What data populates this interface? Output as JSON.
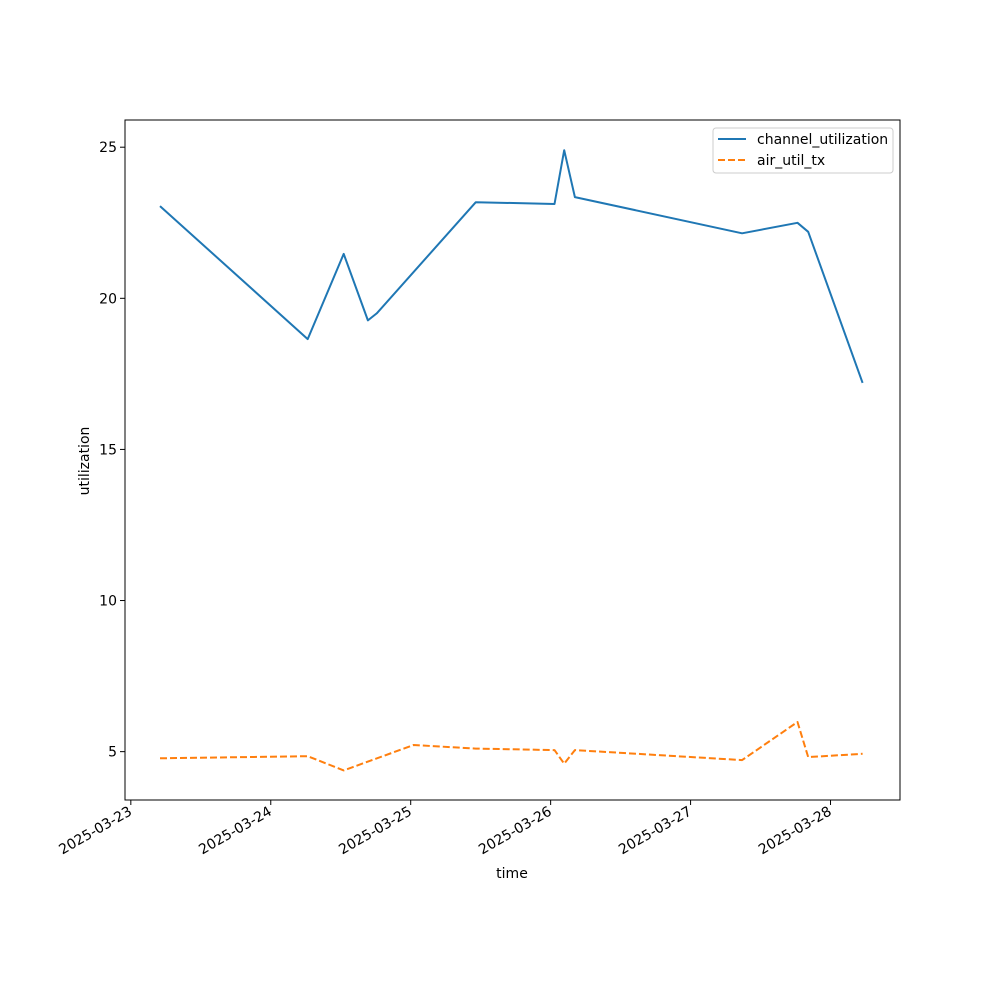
{
  "chart_data": {
    "type": "line",
    "xlabel": "time",
    "ylabel": "utilization",
    "x_ticks": [
      "2025-03-23",
      "2025-03-24",
      "2025-03-25",
      "2025-03-26",
      "2025-03-27",
      "2025-03-28"
    ],
    "y_ticks": [
      5,
      10,
      15,
      20,
      25
    ],
    "xlim": [
      "2025-03-22 23:00",
      "2025-03-28 11:55"
    ],
    "ylim": [
      3.4,
      25.9
    ],
    "grid": false,
    "legend_position": "top-right",
    "series": [
      {
        "name": "channel_utilization",
        "color": "#1f77b4",
        "style": "solid",
        "points": [
          {
            "x": "2025-03-23 05:00",
            "y": 23.05
          },
          {
            "x": "2025-03-24 06:20",
            "y": 18.65
          },
          {
            "x": "2025-03-24 12:30",
            "y": 21.47
          },
          {
            "x": "2025-03-24 16:40",
            "y": 19.27
          },
          {
            "x": "2025-03-24 18:10",
            "y": 19.5
          },
          {
            "x": "2025-03-25 11:10",
            "y": 23.18
          },
          {
            "x": "2025-03-26 00:40",
            "y": 23.12
          },
          {
            "x": "2025-03-26 02:20",
            "y": 24.9
          },
          {
            "x": "2025-03-26 04:10",
            "y": 23.35
          },
          {
            "x": "2025-03-27 08:50",
            "y": 22.15
          },
          {
            "x": "2025-03-27 18:20",
            "y": 22.5
          },
          {
            "x": "2025-03-27 20:10",
            "y": 22.2
          },
          {
            "x": "2025-03-28 05:30",
            "y": 17.2
          }
        ]
      },
      {
        "name": "air_util_tx",
        "color": "#ff7f0e",
        "style": "dashed",
        "points": [
          {
            "x": "2025-03-23 05:00",
            "y": 4.78
          },
          {
            "x": "2025-03-24 06:20",
            "y": 4.85
          },
          {
            "x": "2025-03-24 12:30",
            "y": 4.38
          },
          {
            "x": "2025-03-25 00:30",
            "y": 5.22
          },
          {
            "x": "2025-03-25 11:10",
            "y": 5.1
          },
          {
            "x": "2025-03-26 00:40",
            "y": 5.05
          },
          {
            "x": "2025-03-26 02:20",
            "y": 4.6
          },
          {
            "x": "2025-03-26 04:10",
            "y": 5.05
          },
          {
            "x": "2025-03-27 08:50",
            "y": 4.72
          },
          {
            "x": "2025-03-27 18:20",
            "y": 5.98
          },
          {
            "x": "2025-03-27 20:10",
            "y": 4.82
          },
          {
            "x": "2025-03-28 05:30",
            "y": 4.93
          }
        ]
      }
    ]
  }
}
